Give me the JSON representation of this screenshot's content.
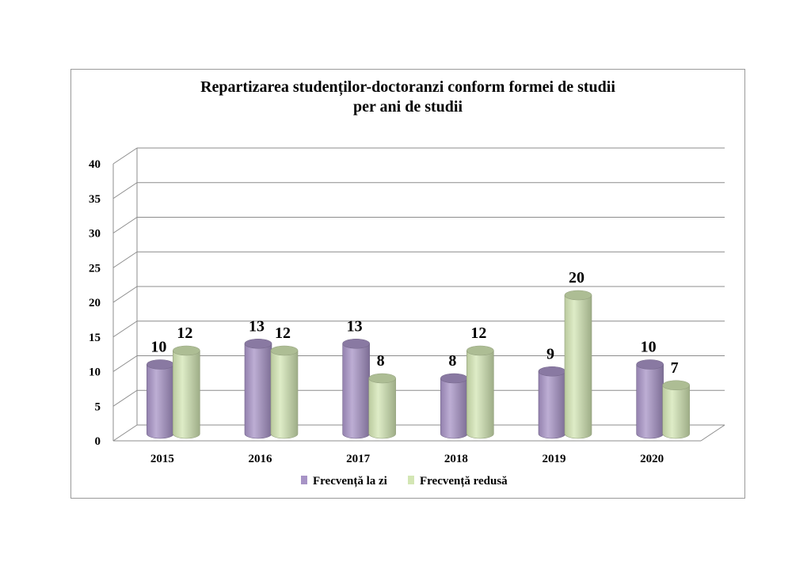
{
  "chart_data": {
    "type": "bar",
    "variant": "3d-cylinder-clustered",
    "title": "Repartizarea studenților-doctoranzi conform formei de studii",
    "subtitle": "per ani de studii",
    "categories": [
      "2015",
      "2016",
      "2017",
      "2018",
      "2019",
      "2020"
    ],
    "series": [
      {
        "name": "Frecvență la zi",
        "values": [
          10,
          13,
          13,
          8,
          9,
          10
        ],
        "color": "#a793c6"
      },
      {
        "name": "Frecvență redusă",
        "values": [
          12,
          12,
          8,
          12,
          20,
          7
        ],
        "color": "#d3e6b4"
      }
    ],
    "ylim": [
      0,
      40
    ],
    "yticks": [
      "0",
      "5",
      "10",
      "15",
      "20",
      "25",
      "30",
      "35",
      "40"
    ],
    "grid": true,
    "legend": "bottom",
    "data_labels": true
  }
}
